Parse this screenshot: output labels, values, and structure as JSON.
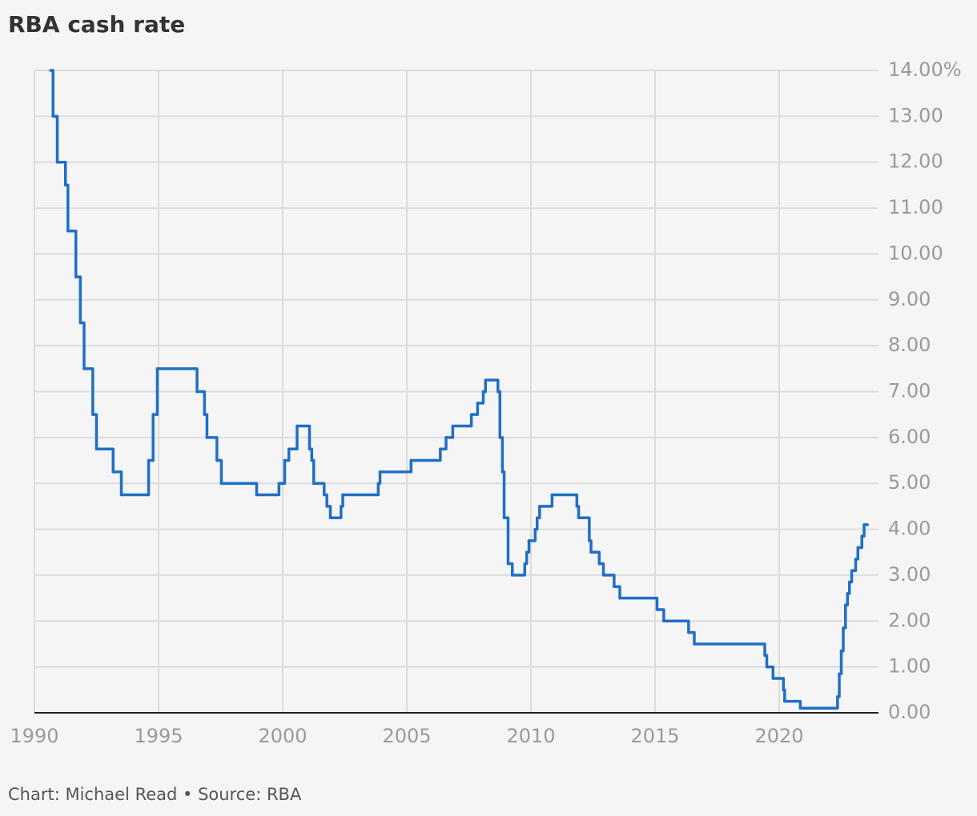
{
  "chart_data": {
    "type": "step-line",
    "title": "RBA cash rate",
    "source": "Chart: Michael Read • Source: RBA",
    "series": [
      {
        "name": "Cash rate",
        "color": "#1f6fc5",
        "x": [
          1990.65,
          1990.75,
          1990.92,
          1991.25,
          1991.35,
          1991.67,
          1991.85,
          1992.0,
          1992.35,
          1992.5,
          1993.17,
          1993.5,
          1994.6,
          1994.78,
          1994.95,
          1996.55,
          1996.85,
          1996.95,
          1997.35,
          1997.53,
          1998.95,
          1999.85,
          2000.08,
          2000.25,
          2000.58,
          2001.08,
          2001.17,
          2001.25,
          2001.67,
          2001.78,
          2001.92,
          2002.35,
          2002.42,
          2003.85,
          2003.92,
          2005.17,
          2006.35,
          2006.58,
          2006.85,
          2007.6,
          2007.85,
          2008.08,
          2008.17,
          2008.67,
          2008.75,
          2008.85,
          2008.92,
          2009.08,
          2009.25,
          2009.75,
          2009.83,
          2009.92,
          2010.17,
          2010.25,
          2010.35,
          2010.85,
          2011.85,
          2011.92,
          2012.35,
          2012.42,
          2012.75,
          2012.92,
          2013.35,
          2013.58,
          2015.08,
          2015.35,
          2016.35,
          2016.58,
          2019.42,
          2019.5,
          2019.75,
          2020.17,
          2020.22,
          2020.85,
          2022.35,
          2022.42,
          2022.5,
          2022.58,
          2022.67,
          2022.75,
          2022.83,
          2022.92,
          2023.08,
          2023.17,
          2023.33,
          2023.42,
          2023.55
        ],
        "values": [
          14,
          13,
          12,
          11.5,
          10.5,
          9.5,
          8.5,
          7.5,
          6.5,
          5.75,
          5.25,
          4.75,
          5.5,
          6.5,
          7.5,
          7,
          6.5,
          6,
          5.5,
          5,
          4.75,
          5,
          5.5,
          5.75,
          6.25,
          5.75,
          5.5,
          5,
          4.75,
          4.5,
          4.25,
          4.5,
          4.75,
          5,
          5.25,
          5.5,
          5.75,
          6,
          6.25,
          6.5,
          6.75,
          7,
          7.25,
          7,
          6,
          5.25,
          4.25,
          3.25,
          3,
          3.25,
          3.5,
          3.75,
          4,
          4.25,
          4.5,
          4.75,
          4.5,
          4.25,
          3.75,
          3.5,
          3.25,
          3,
          2.75,
          2.5,
          2.25,
          2,
          1.75,
          1.5,
          1.25,
          1,
          0.75,
          0.5,
          0.25,
          0.1,
          0.35,
          0.85,
          1.35,
          1.85,
          2.35,
          2.6,
          2.85,
          3.1,
          3.35,
          3.6,
          3.85,
          4.1,
          4.1
        ]
      }
    ],
    "xlim": [
      1990,
      2024
    ],
    "xticks": [
      1990,
      1995,
      2000,
      2005,
      2010,
      2015,
      2020
    ],
    "ylim": [
      0,
      14
    ],
    "yticks": [
      {
        "value": 0,
        "label": "0.00"
      },
      {
        "value": 1,
        "label": "1.00"
      },
      {
        "value": 2,
        "label": "2.00"
      },
      {
        "value": 3,
        "label": "3.00"
      },
      {
        "value": 4,
        "label": "4.00"
      },
      {
        "value": 5,
        "label": "5.00"
      },
      {
        "value": 6,
        "label": "6.00"
      },
      {
        "value": 7,
        "label": "7.00"
      },
      {
        "value": 8,
        "label": "8.00"
      },
      {
        "value": 9,
        "label": "9.00"
      },
      {
        "value": 10,
        "label": "10.00"
      },
      {
        "value": 11,
        "label": "11.00"
      },
      {
        "value": 12,
        "label": "12.00"
      },
      {
        "value": 13,
        "label": "13.00"
      },
      {
        "value": 14,
        "label": "14.00%"
      }
    ],
    "grid": true
  }
}
